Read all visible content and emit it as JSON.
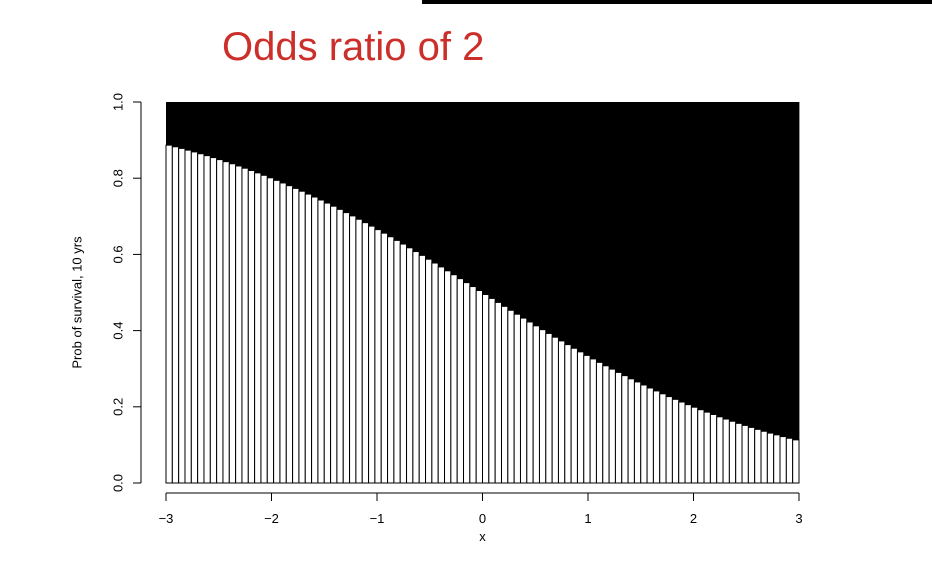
{
  "slide": {
    "title": "Odds ratio of 2"
  },
  "colors": {
    "title": "#cc2f2a",
    "fill_dark": "#000000",
    "bar_line": "#000000",
    "background": "#ffffff"
  },
  "chart_data": {
    "type": "bar",
    "description_axes": "stacked vertical bars of probability (white/hatched) vs complement (black)",
    "xlabel": "x",
    "ylabel": "Prob of survival, 10 yrs",
    "xlim": [
      -3,
      3
    ],
    "ylim": [
      0,
      1
    ],
    "x_ticks": [
      -3,
      -2,
      -1,
      0,
      1,
      2,
      3
    ],
    "x_tick_labels": [
      "−3",
      "−2",
      "−1",
      "0",
      "1",
      "2",
      "3"
    ],
    "y_ticks": [
      0,
      0.2,
      0.4,
      0.6,
      0.8,
      1
    ],
    "y_tick_labels": [
      "0.0",
      "0.2",
      "0.4",
      "0.6",
      "0.8",
      "1.0"
    ],
    "bar_count": 100,
    "curve": {
      "form": "logistic",
      "intercept": 0,
      "slope": -0.693,
      "samples": [
        [
          -3,
          0.889
        ],
        [
          -2,
          0.8
        ],
        [
          -1,
          0.667
        ],
        [
          0,
          0.5
        ],
        [
          1,
          0.333
        ],
        [
          2,
          0.2
        ],
        [
          3,
          0.111
        ]
      ]
    },
    "grid": false,
    "legend": "none"
  }
}
